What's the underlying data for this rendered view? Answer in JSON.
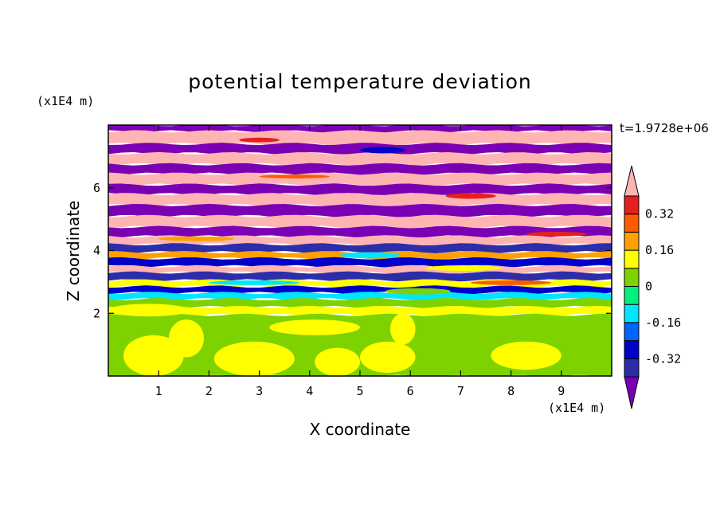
{
  "chart_data": {
    "type": "heatmap",
    "title": "potential temperature deviation",
    "xlabel": "X coordinate",
    "ylabel": "Z coordinate",
    "x_unit": "(x1E4 m)",
    "y_unit": "(x1E4 m)",
    "time_label": "t=1.9728e+06",
    "xlim": [
      0,
      10
    ],
    "ylim": [
      0,
      8
    ],
    "x_ticks": [
      "1",
      "2",
      "3",
      "4",
      "5",
      "6",
      "7",
      "8",
      "9"
    ],
    "y_ticks": [
      "2",
      "4",
      "6"
    ],
    "colorbar": {
      "tick_labels": [
        "0.32",
        "0.16",
        "0",
        "-0.16",
        "-0.32"
      ],
      "tick_values": [
        0.32,
        0.16,
        0,
        -0.16,
        -0.32
      ],
      "levels": [
        -0.4,
        -0.32,
        -0.24,
        -0.16,
        -0.08,
        0,
        0.08,
        0.16,
        0.24,
        0.32,
        0.4
      ],
      "colors": [
        "#7b00b4",
        "#2d2daa",
        "#0000c8",
        "#0064ff",
        "#00e6ff",
        "#00f07a",
        "#7dd200",
        "#ffff00",
        "#ffa000",
        "#ff5a00",
        "#e61e1e",
        "#ffb4b4"
      ],
      "extend": "both"
    },
    "bands": [
      {
        "z_from": 7.8,
        "z_to": 8.0,
        "value": -0.45
      },
      {
        "z_from": 7.4,
        "z_to": 7.8,
        "value": 0.45
      },
      {
        "z_from": 7.1,
        "z_to": 7.4,
        "value": -0.45
      },
      {
        "z_from": 6.75,
        "z_to": 7.1,
        "value": 0.45
      },
      {
        "z_from": 6.45,
        "z_to": 6.75,
        "value": -0.45
      },
      {
        "z_from": 6.1,
        "z_to": 6.45,
        "value": 0.45
      },
      {
        "z_from": 5.8,
        "z_to": 6.1,
        "value": -0.45
      },
      {
        "z_from": 5.45,
        "z_to": 5.8,
        "value": 0.45
      },
      {
        "z_from": 5.1,
        "z_to": 5.45,
        "value": -0.45
      },
      {
        "z_from": 4.75,
        "z_to": 5.1,
        "value": 0.45
      },
      {
        "z_from": 4.45,
        "z_to": 4.75,
        "value": -0.45
      },
      {
        "z_from": 4.2,
        "z_to": 4.45,
        "value": 0.45
      },
      {
        "z_from": 3.95,
        "z_to": 4.2,
        "value": -0.36
      },
      {
        "z_from": 3.75,
        "z_to": 3.95,
        "value": 0.2
      },
      {
        "z_from": 3.5,
        "z_to": 3.75,
        "value": -0.3
      },
      {
        "z_from": 3.3,
        "z_to": 3.5,
        "value": 0.45
      },
      {
        "z_from": 3.05,
        "z_to": 3.3,
        "value": -0.36
      },
      {
        "z_from": 2.85,
        "z_to": 3.05,
        "value": 0.1
      },
      {
        "z_from": 2.65,
        "z_to": 2.85,
        "value": -0.28
      },
      {
        "z_from": 2.45,
        "z_to": 2.65,
        "value": -0.1
      },
      {
        "z_from": 2.2,
        "z_to": 2.45,
        "value": 0.02
      },
      {
        "z_from": 1.95,
        "z_to": 2.2,
        "value": 0.1
      },
      {
        "z_from": 0.0,
        "z_to": 1.95,
        "value": 0.02
      }
    ],
    "patches": [
      {
        "x": 0.0,
        "z": 1.9,
        "w": 1.6,
        "h": 0.4,
        "value": 0.1
      },
      {
        "x": 0.3,
        "z": 0.0,
        "w": 1.2,
        "h": 1.3,
        "value": 0.1
      },
      {
        "x": 1.2,
        "z": 0.6,
        "w": 0.7,
        "h": 1.2,
        "value": 0.1
      },
      {
        "x": 2.1,
        "z": 0.0,
        "w": 1.6,
        "h": 1.1,
        "value": 0.1
      },
      {
        "x": 3.2,
        "z": 1.3,
        "w": 1.8,
        "h": 0.5,
        "value": 0.1
      },
      {
        "x": 4.1,
        "z": 0.0,
        "w": 0.9,
        "h": 0.9,
        "value": 0.1
      },
      {
        "x": 5.0,
        "z": 0.1,
        "w": 1.1,
        "h": 1.0,
        "value": 0.1
      },
      {
        "x": 5.6,
        "z": 1.0,
        "w": 0.5,
        "h": 1.0,
        "value": 0.1
      },
      {
        "x": 7.6,
        "z": 0.2,
        "w": 1.4,
        "h": 0.9,
        "value": 0.1
      },
      {
        "x": 2.6,
        "z": 7.45,
        "w": 0.8,
        "h": 0.15,
        "value": 0.32
      },
      {
        "x": 5.0,
        "z": 7.1,
        "w": 0.9,
        "h": 0.2,
        "value": -0.25
      },
      {
        "x": 6.7,
        "z": 5.65,
        "w": 1.0,
        "h": 0.18,
        "value": 0.36
      },
      {
        "x": 3.0,
        "z": 6.3,
        "w": 1.4,
        "h": 0.12,
        "value": 0.3
      },
      {
        "x": 8.3,
        "z": 4.45,
        "w": 1.2,
        "h": 0.15,
        "value": 0.36
      },
      {
        "x": 1.0,
        "z": 4.3,
        "w": 1.5,
        "h": 0.15,
        "value": 0.2
      },
      {
        "x": 4.6,
        "z": 3.75,
        "w": 1.2,
        "h": 0.2,
        "value": -0.12
      },
      {
        "x": 6.3,
        "z": 3.35,
        "w": 1.5,
        "h": 0.18,
        "value": 0.12
      },
      {
        "x": 2.0,
        "z": 2.9,
        "w": 1.8,
        "h": 0.15,
        "value": -0.12
      },
      {
        "x": 7.2,
        "z": 2.9,
        "w": 1.6,
        "h": 0.15,
        "value": 0.28
      },
      {
        "x": 5.5,
        "z": 2.6,
        "w": 1.3,
        "h": 0.2,
        "value": 0.02
      }
    ]
  }
}
